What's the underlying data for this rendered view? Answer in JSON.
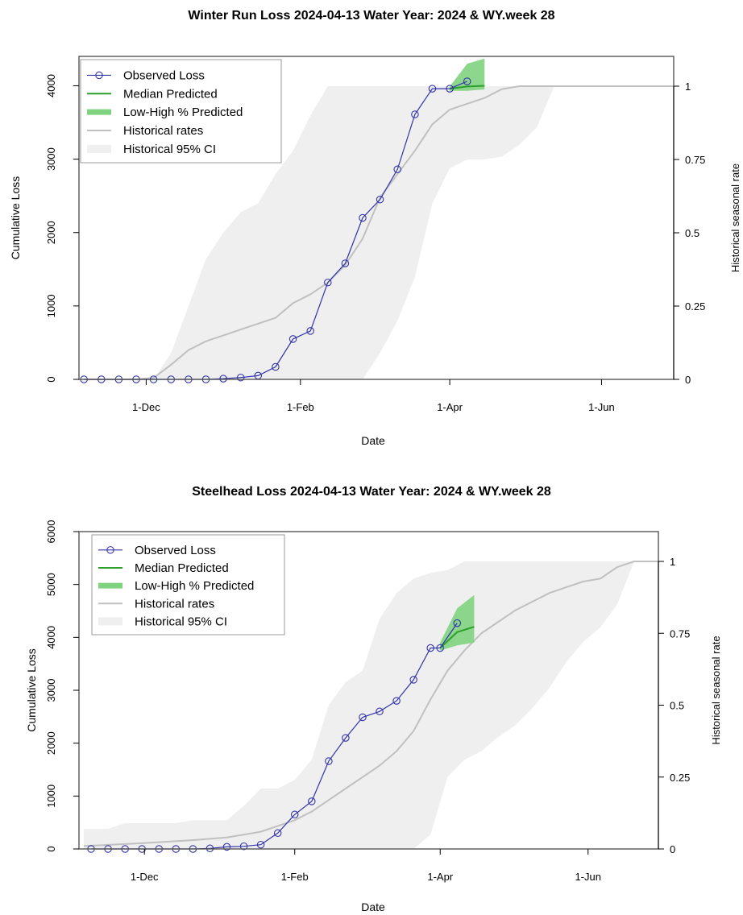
{
  "chart_data": [
    {
      "type": "line",
      "title": "Winter Run Loss 2024-04-13  Water Year: 2024 & WY.week 28",
      "xlabel": "Date",
      "ylabel": "Cumulative Loss",
      "ylabel_right": "Historical seasonal rate",
      "x_unit": "days since 1-Oct-2023 (water-year day)",
      "xlim": [
        34,
        273
      ],
      "ylim": [
        0,
        4400
      ],
      "ylim_right": [
        0,
        1.0
      ],
      "x_ticks": [
        {
          "day": 61,
          "label": "1-Dec"
        },
        {
          "day": 123,
          "label": "1-Feb"
        },
        {
          "day": 183,
          "label": "1-Apr"
        },
        {
          "day": 244,
          "label": "1-Jun"
        }
      ],
      "y_ticks": [
        0,
        1000,
        2000,
        3000,
        4000
      ],
      "y_ticks_right": [
        {
          "value": 0,
          "label": "0"
        },
        {
          "value": 0.25,
          "label": "0.25"
        },
        {
          "value": 0.5,
          "label": "0.5"
        },
        {
          "value": 0.75,
          "label": "0.75"
        },
        {
          "value": 1,
          "label": "1"
        }
      ],
      "legend": {
        "position": "top-left",
        "entries": [
          "Observed Loss",
          "Median Predicted",
          "Low-High % Predicted",
          "Historical rates",
          "Historical 95% CI"
        ]
      },
      "colors": {
        "observed": "#3333aa",
        "median": "#2ca02c",
        "predicted_band": "#7fd37f",
        "historical": "#c0c0c0",
        "ci_band": "#efefef"
      },
      "series": [
        {
          "name": "Observed Loss",
          "axis": "left",
          "x": [
            36,
            43,
            50,
            57,
            64,
            71,
            78,
            85,
            92,
            99,
            106,
            113,
            120,
            127,
            134,
            141,
            148,
            155,
            162,
            169,
            176,
            183,
            190
          ],
          "y": [
            0,
            0,
            0,
            0,
            0,
            0,
            0,
            0,
            10,
            25,
            50,
            170,
            550,
            660,
            1320,
            1580,
            2200,
            2450,
            2860,
            3610,
            3960,
            3960,
            4060
          ]
        },
        {
          "name": "Median Predicted",
          "axis": "left",
          "x": [
            183,
            190,
            197
          ],
          "y": [
            3960,
            3990,
            4000
          ]
        },
        {
          "name": "Low-High % Predicted",
          "axis": "left",
          "x": [
            183,
            190,
            197
          ],
          "low": [
            3930,
            3930,
            3950
          ],
          "high": [
            3990,
            4300,
            4370
          ]
        },
        {
          "name": "Historical rates",
          "axis": "right",
          "x": [
            36,
            57,
            64,
            71,
            78,
            85,
            92,
            99,
            106,
            113,
            120,
            127,
            134,
            141,
            148,
            155,
            162,
            169,
            176,
            183,
            190,
            197,
            204,
            211,
            218,
            225,
            240,
            255,
            273
          ],
          "y": [
            0,
            0,
            0.005,
            0.05,
            0.1,
            0.13,
            0.15,
            0.17,
            0.19,
            0.21,
            0.26,
            0.29,
            0.33,
            0.39,
            0.48,
            0.62,
            0.7,
            0.78,
            0.87,
            0.92,
            0.94,
            0.96,
            0.99,
            1.0,
            1.0,
            1.0,
            1.0,
            1.0,
            1.0
          ]
        },
        {
          "name": "Historical 95% CI",
          "axis": "right",
          "x": [
            36,
            57,
            64,
            71,
            78,
            85,
            92,
            99,
            106,
            113,
            120,
            127,
            134,
            141,
            148,
            155,
            162,
            169,
            176,
            183,
            190,
            197,
            204,
            211,
            218,
            225,
            273
          ],
          "low": [
            0,
            0,
            0,
            0,
            0,
            0,
            0,
            0,
            0,
            0,
            0,
            0,
            0,
            0,
            0,
            0.09,
            0.2,
            0.35,
            0.6,
            0.72,
            0.75,
            0.75,
            0.76,
            0.8,
            0.86,
            1.0,
            1.0
          ],
          "high": [
            0,
            0,
            0,
            0.09,
            0.25,
            0.41,
            0.5,
            0.57,
            0.6,
            0.7,
            0.78,
            0.9,
            1.0,
            1.0,
            1.0,
            1.0,
            1.0,
            1.0,
            1.0,
            1.0,
            1.0,
            1.0,
            1.0,
            1.0,
            1.0,
            1.0,
            1.0
          ]
        }
      ]
    },
    {
      "type": "line",
      "title": "Steelhead Loss 2024-04-13  Water Year: 2024 & WY.week 28",
      "xlabel": "Date",
      "ylabel": "Cumulative Loss",
      "ylabel_right": "Historical seasonal rate",
      "x_unit": "days since 1-Oct-2023 (water-year day)",
      "xlim": [
        34,
        273
      ],
      "ylim": [
        0,
        6000
      ],
      "ylim_right": [
        0,
        1.0
      ],
      "x_ticks": [
        {
          "day": 61,
          "label": "1-Dec"
        },
        {
          "day": 123,
          "label": "1-Feb"
        },
        {
          "day": 183,
          "label": "1-Apr"
        },
        {
          "day": 244,
          "label": "1-Jun"
        }
      ],
      "y_ticks": [
        0,
        1000,
        2000,
        3000,
        4000,
        5000,
        6000
      ],
      "y_ticks_right": [
        {
          "value": 0,
          "label": "0"
        },
        {
          "value": 0.25,
          "label": "0.25"
        },
        {
          "value": 0.5,
          "label": "0.5"
        },
        {
          "value": 0.75,
          "label": "0.75"
        },
        {
          "value": 1,
          "label": "1"
        }
      ],
      "legend": {
        "position": "top-left",
        "entries": [
          "Observed Loss",
          "Median Predicted",
          "Low-High % Predicted",
          "Historical rates",
          "Historical 95% CI"
        ]
      },
      "colors": {
        "observed": "#3333aa",
        "median": "#2ca02c",
        "predicted_band": "#7fd37f",
        "historical": "#c0c0c0",
        "ci_band": "#efefef"
      },
      "series": [
        {
          "name": "Observed Loss",
          "axis": "left",
          "x": [
            39,
            46,
            53,
            60,
            67,
            74,
            81,
            88,
            95,
            102,
            109,
            116,
            123,
            130,
            137,
            144,
            151,
            158,
            165,
            172,
            179,
            183,
            190
          ],
          "y": [
            0,
            0,
            0,
            0,
            0,
            0,
            0,
            10,
            40,
            50,
            80,
            300,
            650,
            900,
            1660,
            2100,
            2490,
            2600,
            2800,
            3200,
            3800,
            3800,
            4270
          ]
        },
        {
          "name": "Median Predicted",
          "axis": "left",
          "x": [
            183,
            190,
            197
          ],
          "y": [
            3800,
            4100,
            4200
          ]
        },
        {
          "name": "Low-High % Predicted",
          "axis": "left",
          "x": [
            183,
            190,
            197
          ],
          "low": [
            3750,
            3850,
            3900
          ],
          "high": [
            3900,
            4550,
            4800
          ]
        },
        {
          "name": "Historical rates",
          "axis": "right",
          "x": [
            36,
            60,
            80,
            95,
            102,
            109,
            116,
            123,
            130,
            137,
            144,
            151,
            158,
            165,
            172,
            179,
            186,
            193,
            200,
            207,
            214,
            221,
            228,
            235,
            242,
            249,
            256,
            263,
            273
          ],
          "y": [
            0.01,
            0.02,
            0.03,
            0.04,
            0.05,
            0.06,
            0.08,
            0.1,
            0.13,
            0.17,
            0.21,
            0.25,
            0.29,
            0.34,
            0.41,
            0.52,
            0.62,
            0.69,
            0.75,
            0.79,
            0.83,
            0.86,
            0.89,
            0.91,
            0.93,
            0.94,
            0.98,
            1.0,
            1.0
          ]
        },
        {
          "name": "Historical 95% CI",
          "axis": "right",
          "x": [
            36,
            39,
            46,
            53,
            60,
            67,
            74,
            81,
            88,
            95,
            102,
            109,
            116,
            123,
            130,
            137,
            144,
            151,
            158,
            165,
            172,
            179,
            186,
            193,
            200,
            207,
            214,
            221,
            228,
            235,
            242,
            249,
            256,
            263,
            273
          ],
          "low": [
            0,
            0,
            0,
            0,
            0,
            0,
            0,
            0,
            0,
            0,
            0,
            0,
            0,
            0,
            0,
            0,
            0,
            0,
            0,
            0,
            0,
            0.05,
            0.25,
            0.31,
            0.34,
            0.39,
            0.43,
            0.49,
            0.56,
            0.65,
            0.72,
            0.77,
            0.85,
            1.0,
            1.0
          ],
          "high": [
            0.07,
            0.07,
            0.07,
            0.09,
            0.09,
            0.09,
            0.09,
            0.1,
            0.1,
            0.1,
            0.15,
            0.21,
            0.21,
            0.24,
            0.31,
            0.5,
            0.58,
            0.62,
            0.8,
            0.89,
            0.94,
            0.96,
            0.97,
            1.0,
            1.0,
            1.0,
            1.0,
            1.0,
            1.0,
            1.0,
            1.0,
            1.0,
            1.0,
            1.0,
            1.0
          ]
        }
      ]
    }
  ]
}
